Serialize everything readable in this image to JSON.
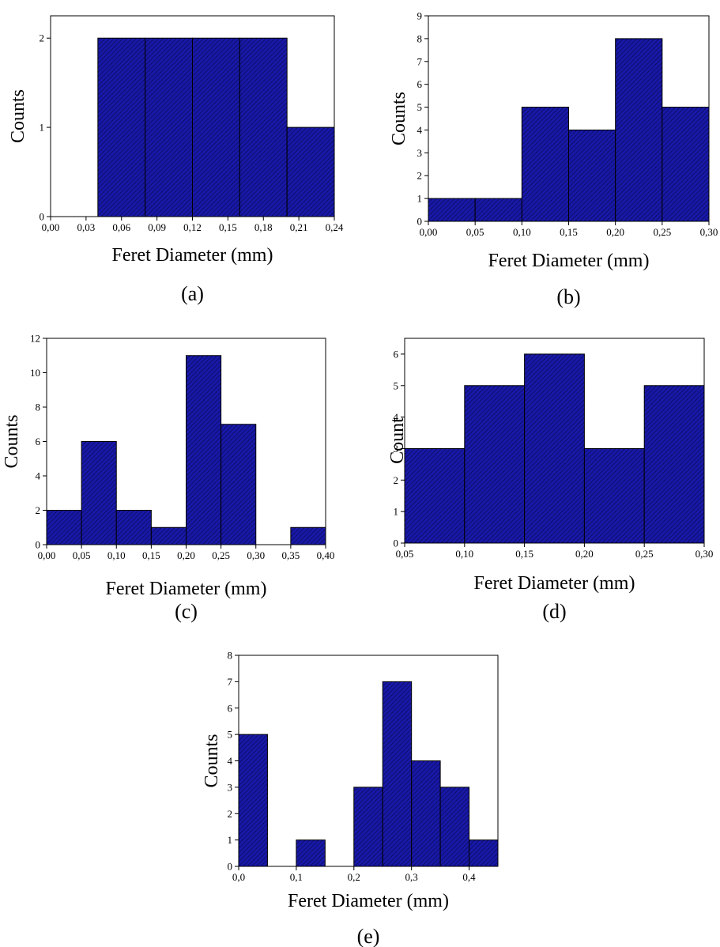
{
  "bar_color": "#1818a8",
  "hatch_color": "#0a0a50",
  "chart_data": [
    {
      "type": "bar",
      "panel_label": "(a)",
      "xlabel": "Feret Diameter (mm)",
      "ylabel": "Counts",
      "xlim": [
        0,
        0.24
      ],
      "ylim": [
        0,
        2.25
      ],
      "xticks": [
        0,
        0.03,
        0.06,
        0.09,
        0.12,
        0.15,
        0.18,
        0.21,
        0.24
      ],
      "xtick_labels": [
        "0,00",
        "0,03",
        "0,06",
        "0,09",
        "0,12",
        "0,15",
        "0,18",
        "0,21",
        "0,24"
      ],
      "yticks": [
        0,
        1,
        2
      ],
      "ytick_labels": [
        "0",
        "1",
        "2"
      ],
      "bins": [
        {
          "start": 0.04,
          "end": 0.08,
          "count": 2
        },
        {
          "start": 0.08,
          "end": 0.12,
          "count": 2
        },
        {
          "start": 0.12,
          "end": 0.16,
          "count": 2
        },
        {
          "start": 0.16,
          "end": 0.2,
          "count": 2
        },
        {
          "start": 0.2,
          "end": 0.24,
          "count": 1
        }
      ]
    },
    {
      "type": "bar",
      "panel_label": "(b)",
      "xlabel": "Feret Diameter (mm)",
      "ylabel": "Counts",
      "xlim": [
        0,
        0.3
      ],
      "ylim": [
        0,
        9
      ],
      "xticks": [
        0,
        0.05,
        0.1,
        0.15,
        0.2,
        0.25,
        0.3
      ],
      "xtick_labels": [
        "0,00",
        "0,05",
        "0,10",
        "0,15",
        "0,20",
        "0,25",
        "0,30"
      ],
      "yticks": [
        0,
        1,
        2,
        3,
        4,
        5,
        6,
        7,
        8,
        9
      ],
      "ytick_labels": [
        "0",
        "1",
        "2",
        "3",
        "4",
        "5",
        "6",
        "7",
        "8",
        "9"
      ],
      "bins": [
        {
          "start": 0.0,
          "end": 0.05,
          "count": 1
        },
        {
          "start": 0.05,
          "end": 0.1,
          "count": 1
        },
        {
          "start": 0.1,
          "end": 0.15,
          "count": 5
        },
        {
          "start": 0.15,
          "end": 0.2,
          "count": 4
        },
        {
          "start": 0.2,
          "end": 0.25,
          "count": 8
        },
        {
          "start": 0.25,
          "end": 0.3,
          "count": 5
        }
      ]
    },
    {
      "type": "bar",
      "panel_label": "(c)",
      "xlabel": "Feret Diameter (mm)",
      "ylabel": "Counts",
      "xlim": [
        0,
        0.4
      ],
      "ylim": [
        0,
        12
      ],
      "xticks": [
        0,
        0.05,
        0.1,
        0.15,
        0.2,
        0.25,
        0.3,
        0.35,
        0.4
      ],
      "xtick_labels": [
        "0,00",
        "0,05",
        "0,10",
        "0,15",
        "0,20",
        "0,25",
        "0,30",
        "0,35",
        "0,40"
      ],
      "yticks": [
        0,
        2,
        4,
        6,
        8,
        10,
        12
      ],
      "ytick_labels": [
        "0",
        "2",
        "4",
        "6",
        "8",
        "10",
        "12"
      ],
      "bins": [
        {
          "start": 0.0,
          "end": 0.05,
          "count": 2
        },
        {
          "start": 0.05,
          "end": 0.1,
          "count": 6
        },
        {
          "start": 0.1,
          "end": 0.15,
          "count": 2
        },
        {
          "start": 0.15,
          "end": 0.2,
          "count": 1
        },
        {
          "start": 0.2,
          "end": 0.25,
          "count": 11
        },
        {
          "start": 0.25,
          "end": 0.3,
          "count": 7
        },
        {
          "start": 0.3,
          "end": 0.35,
          "count": 0
        },
        {
          "start": 0.35,
          "end": 0.4,
          "count": 1
        }
      ]
    },
    {
      "type": "bar",
      "panel_label": "(d)",
      "xlabel": "Feret Diameter (mm)",
      "ylabel": "Count",
      "xlim": [
        0.05,
        0.3
      ],
      "ylim": [
        0,
        6.5
      ],
      "xticks": [
        0.05,
        0.1,
        0.15,
        0.2,
        0.25,
        0.3
      ],
      "xtick_labels": [
        "0,05",
        "0,10",
        "0,15",
        "0,20",
        "0,25",
        "0,30"
      ],
      "yticks": [
        0,
        1,
        2,
        3,
        4,
        5,
        6
      ],
      "ytick_labels": [
        "0",
        "1",
        "2",
        "3",
        "4",
        "5",
        "6"
      ],
      "bins": [
        {
          "start": 0.05,
          "end": 0.1,
          "count": 3
        },
        {
          "start": 0.1,
          "end": 0.15,
          "count": 5
        },
        {
          "start": 0.15,
          "end": 0.2,
          "count": 6
        },
        {
          "start": 0.2,
          "end": 0.25,
          "count": 3
        },
        {
          "start": 0.25,
          "end": 0.3,
          "count": 5
        }
      ]
    },
    {
      "type": "bar",
      "panel_label": "(e)",
      "xlabel": "Feret Diameter (mm)",
      "ylabel": "Counts",
      "xlim": [
        0,
        0.45
      ],
      "ylim": [
        0,
        8
      ],
      "xticks": [
        0,
        0.1,
        0.2,
        0.3,
        0.4
      ],
      "xtick_labels": [
        "0,0",
        "0,1",
        "0,2",
        "0,3",
        "0,4"
      ],
      "yticks": [
        0,
        1,
        2,
        3,
        4,
        5,
        6,
        7,
        8
      ],
      "ytick_labels": [
        "0",
        "1",
        "2",
        "3",
        "4",
        "5",
        "6",
        "7",
        "8"
      ],
      "bins": [
        {
          "start": 0.0,
          "end": 0.05,
          "count": 5
        },
        {
          "start": 0.05,
          "end": 0.1,
          "count": 0
        },
        {
          "start": 0.1,
          "end": 0.15,
          "count": 1
        },
        {
          "start": 0.15,
          "end": 0.2,
          "count": 0
        },
        {
          "start": 0.2,
          "end": 0.25,
          "count": 3
        },
        {
          "start": 0.25,
          "end": 0.3,
          "count": 7
        },
        {
          "start": 0.3,
          "end": 0.35,
          "count": 4
        },
        {
          "start": 0.35,
          "end": 0.4,
          "count": 3
        },
        {
          "start": 0.4,
          "end": 0.45,
          "count": 1
        }
      ]
    }
  ]
}
